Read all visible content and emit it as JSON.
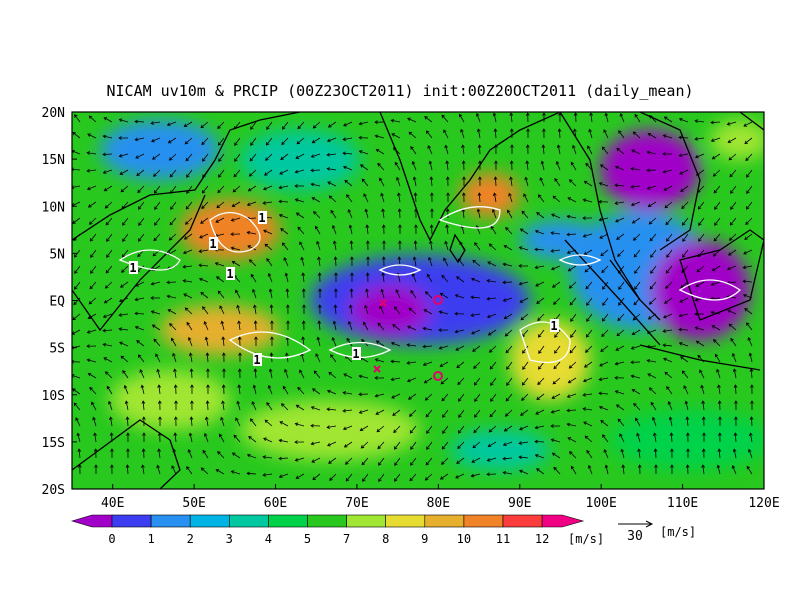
{
  "title": "NICAM uv10m & PRCIP (00Z23OCT2011) init:00Z20OCT2011 (daily_mean)",
  "map": {
    "lon_labels": [
      "40E",
      "50E",
      "60E",
      "70E",
      "80E",
      "90E",
      "100E",
      "110E",
      "120E"
    ],
    "lat_labels": [
      "20N",
      "15N",
      "10N",
      "5N",
      "EQ",
      "5S",
      "10S",
      "15S",
      "20S"
    ],
    "contour_labels": [
      "1",
      "1",
      "1",
      "1",
      "1",
      "1",
      "1"
    ]
  },
  "colorbar": {
    "labels": [
      "0",
      "1",
      "2",
      "3",
      "4",
      "5",
      "7",
      "8",
      "9",
      "10",
      "11",
      "12"
    ],
    "colors": [
      "#a000c8",
      "#3c3cf0",
      "#2890f0",
      "#00b4e6",
      "#00c8a0",
      "#00d24a",
      "#28c81e",
      "#a0e632",
      "#e6dc32",
      "#e6af2d",
      "#f08228",
      "#fa3c3c",
      "#f00082"
    ],
    "unit": "[m/s]"
  },
  "reference_vector": {
    "value": "30",
    "unit": "[m/s]"
  }
}
